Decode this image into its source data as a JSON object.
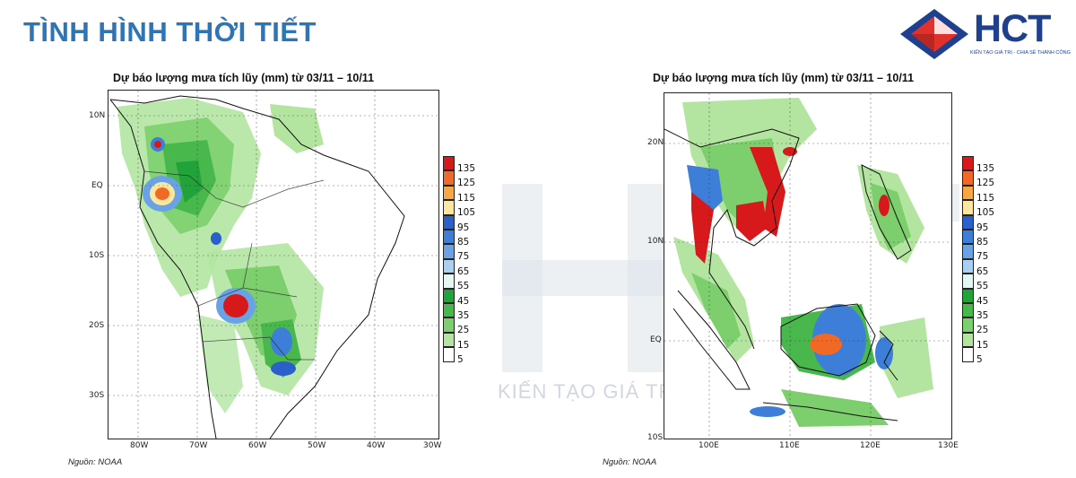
{
  "header": {
    "title": "TÌNH HÌNH THỜI TIẾT",
    "logo_text": "HCT",
    "logo_tagline": "KIẾN TẠO GIÁ TRỊ - CHIA SẺ THÀNH CÔNG"
  },
  "watermark": {
    "text": "KIẾN TẠO GIÁ TRỊ – CHIA SẺ THÀNH CÔNG"
  },
  "colors": {
    "title_blue": "#2e75b6",
    "brand_navy": "#1f3f8f",
    "brand_red": "#e0322b"
  },
  "maps": [
    {
      "title": "Dự báo lượng mưa tích lũy (mm) từ 03/11 – 10/11",
      "region": "South America",
      "lat_labels": [
        "10N",
        "EQ",
        "10S",
        "20S",
        "30S"
      ],
      "lon_labels": [
        "80W",
        "70W",
        "60W",
        "50W",
        "40W",
        "30W"
      ],
      "source": "Nguồn: NOAA"
    },
    {
      "title": "Dự báo lượng mưa tích lũy (mm) từ 03/11 – 10/11",
      "region": "Southeast Asia",
      "lat_labels": [
        "20N",
        "10N",
        "EQ",
        "10S"
      ],
      "lon_labels": [
        "100E",
        "110E",
        "120E",
        "130E"
      ],
      "source": "Nguồn: NOAA"
    }
  ],
  "legend": {
    "unit": "mm",
    "levels": [
      "135",
      "125",
      "115",
      "105",
      "95",
      "85",
      "75",
      "65",
      "55",
      "45",
      "35",
      "25",
      "15",
      "5"
    ],
    "colors": [
      "#d7191c",
      "#f06a26",
      "#f9a742",
      "#fde7a0",
      "#2b5fc9",
      "#3d7fd8",
      "#6aa2e6",
      "#a9cff1",
      "#e4f7f2",
      "#21a33a",
      "#48b84d",
      "#7dcf6d",
      "#b3e5a1",
      "#ffffff"
    ]
  }
}
